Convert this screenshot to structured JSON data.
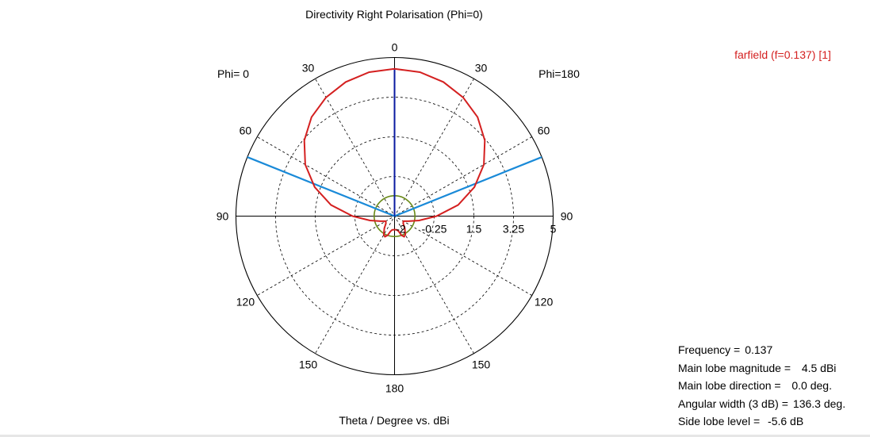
{
  "chart_data": {
    "type": "polar",
    "title": "Directivity Right Polarisation (Phi=0)",
    "xlabel": "Theta / Degree vs. dBi",
    "legend": {
      "label": "farfield (f=0.137) [1]",
      "placement": "top-right",
      "color": "#d42020"
    },
    "side_labels": {
      "left": "Phi=  0",
      "right": "Phi=180"
    },
    "angle_labels": {
      "top": "0",
      "right_side": [
        "30",
        "60",
        "90",
        "120",
        "150"
      ],
      "left_side": [
        "30",
        "60",
        "90",
        "120",
        "150"
      ],
      "bottom": "180"
    },
    "radial_tick_labels": [
      "-2",
      "-0.25",
      "1.5",
      "3.25",
      "5"
    ],
    "radial_range": [
      -2,
      5
    ],
    "grid": true,
    "colors": {
      "main_curve": "#d42020",
      "main_lobe_line": "#0a1aa0",
      "beamwidth_lines": "#1a8ad8",
      "side_lobe_circle": "#6a8a18"
    },
    "series": [
      {
        "theta_deg": [
          0,
          10,
          20,
          30,
          40,
          50,
          60,
          70,
          80,
          90,
          100,
          110,
          120,
          130,
          140,
          150,
          155,
          160,
          165,
          170,
          175,
          180
        ],
        "value_dbi": [
          4.5,
          4.45,
          4.3,
          4.05,
          3.7,
          3.2,
          2.55,
          1.75,
          0.85,
          -0.15,
          -0.9,
          -1.35,
          -1.55,
          -1.5,
          -1.3,
          -1.05,
          -1.0,
          -1.1,
          -1.3,
          -1.38,
          -1.4,
          -1.4
        ]
      }
    ],
    "main_lobe_direction_deg": 0,
    "beamwidth_edges_deg": [
      -68.15,
      68.15
    ],
    "side_lobe_level_dbi": -1.1
  },
  "info_panel": [
    {
      "label": "Frequency =",
      "value": "0.137"
    },
    {
      "label": "Main lobe magnitude =",
      "value": "  4.5 dBi"
    },
    {
      "label": "Main lobe direction =",
      "value": "  0.0 deg."
    },
    {
      "label": "Angular width (3 dB) =",
      "value": "136.3 deg."
    },
    {
      "label": "Side lobe level =",
      "value": " -5.6 dB"
    }
  ]
}
